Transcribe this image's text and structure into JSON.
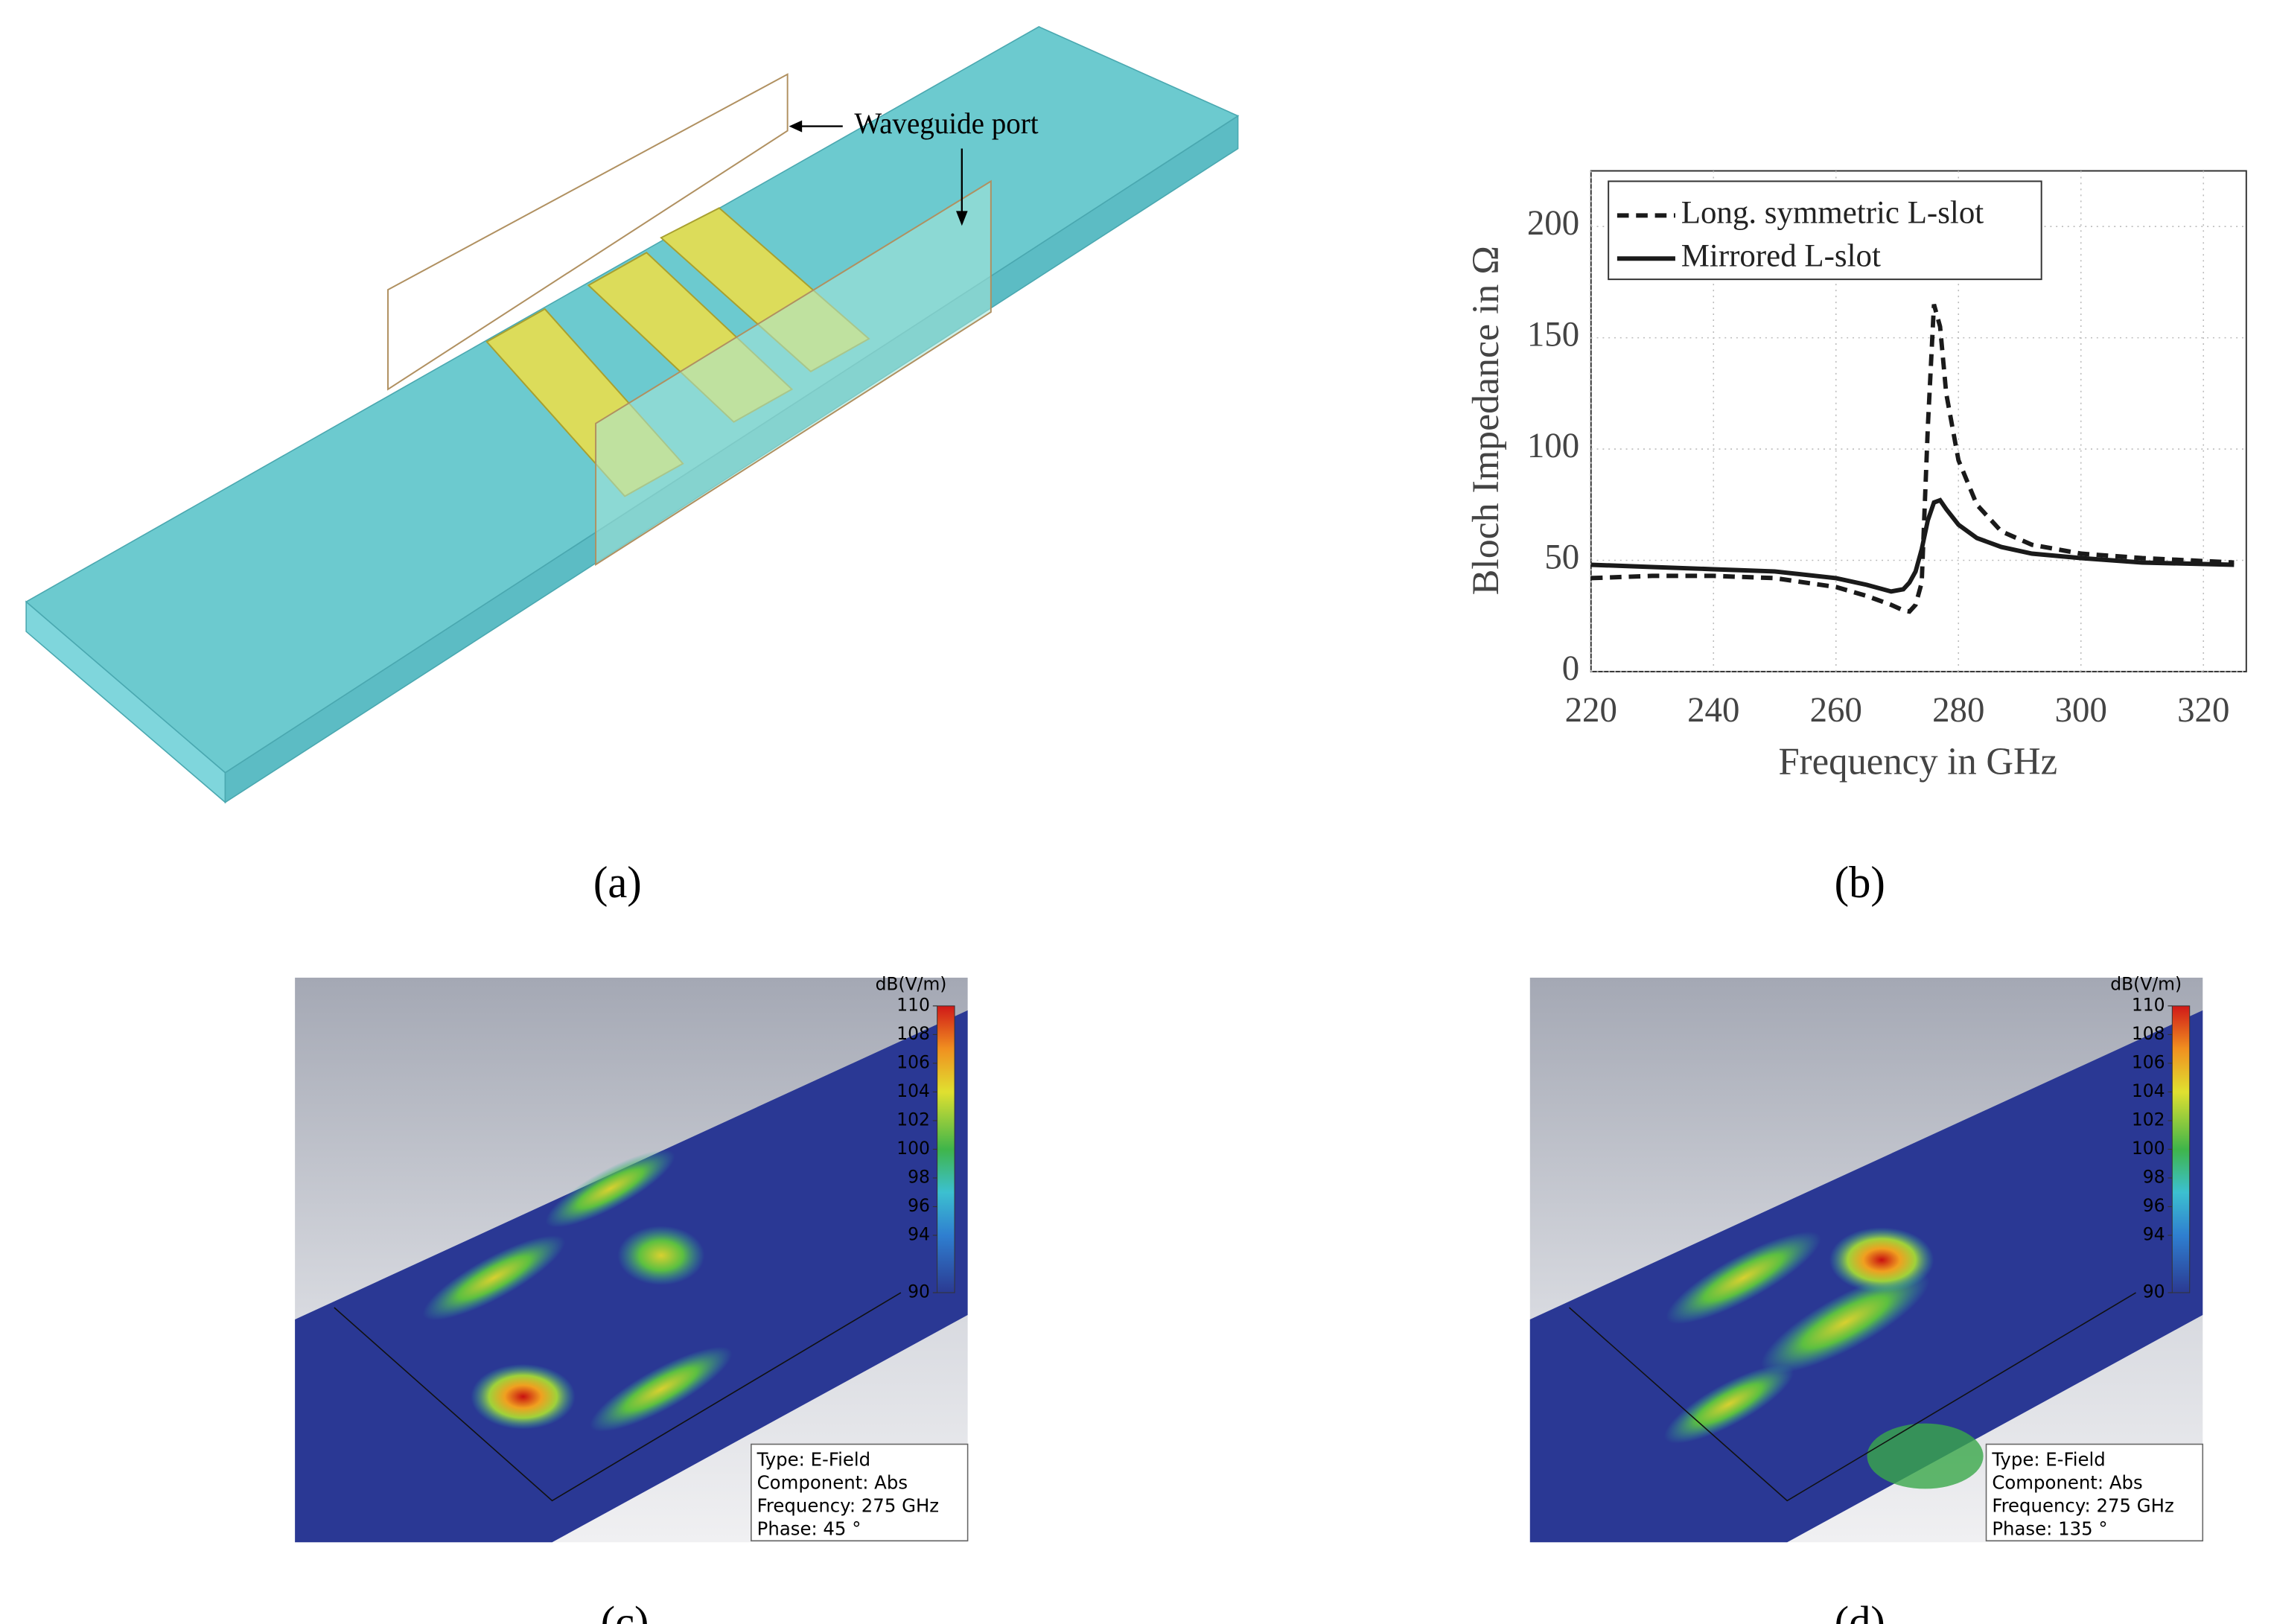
{
  "panels": {
    "a": {
      "label": "(a)",
      "annotation": "Waveguide port"
    },
    "b": {
      "label": "(b)"
    },
    "c": {
      "label": "(c)",
      "colorbar": {
        "unit": "dB(V/m)",
        "ticks": [
          110,
          108,
          106,
          104,
          102,
          100,
          98,
          96,
          94,
          90
        ]
      },
      "info": [
        "Type: E-Field",
        "Component: Abs",
        "Frequency: 275 GHz",
        "Phase: 45 °"
      ]
    },
    "d": {
      "label": "(d)",
      "colorbar": {
        "unit": "dB(V/m)",
        "ticks": [
          110,
          108,
          106,
          104,
          102,
          100,
          98,
          96,
          94,
          90
        ]
      },
      "info": [
        "Type: E-Field",
        "Component: Abs",
        "Frequency: 275 GHz",
        "Phase: 135 °"
      ]
    }
  },
  "chart_data": {
    "type": "line",
    "x_label": "Frequency in GHz",
    "y_label": "Bloch Impedance in Ω",
    "x": [
      220,
      230,
      240,
      250,
      260,
      265,
      269,
      271,
      272,
      273,
      274,
      275,
      276,
      277,
      278,
      280,
      283,
      287,
      292,
      300,
      310,
      325
    ],
    "series": [
      {
        "name": "Long. symmetric L-slot",
        "color": "#1a1a1a",
        "dash": true,
        "values": [
          42,
          43,
          43,
          42,
          38,
          34,
          30,
          27.5,
          27,
          30,
          40,
          110,
          165,
          155,
          125,
          95,
          75,
          63,
          57,
          53,
          51,
          49
        ]
      },
      {
        "name": "Mirrored L-slot",
        "color": "#1a1a1a",
        "dash": false,
        "values": [
          48,
          47,
          46,
          45,
          42,
          39,
          36,
          37,
          40,
          45,
          55,
          68,
          76,
          77,
          73,
          66,
          60,
          56,
          53,
          51,
          49,
          48
        ]
      }
    ],
    "xlim": [
      220,
      327
    ],
    "xticks": [
      220,
      240,
      260,
      280,
      300,
      320
    ],
    "ylim": [
      0,
      225
    ],
    "yticks": [
      0,
      50,
      100,
      150,
      200
    ],
    "grid": true,
    "legend": "upper left"
  }
}
